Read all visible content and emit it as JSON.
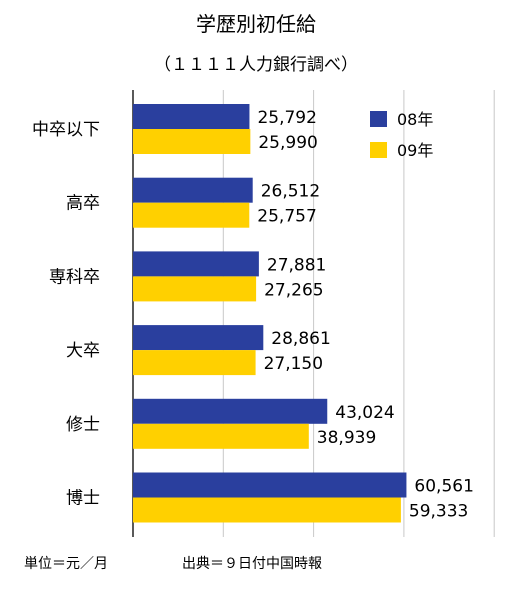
{
  "chart_data": {
    "type": "bar",
    "orientation": "horizontal",
    "title": "学歴別初任給",
    "subtitle": "（１１１１人力銀行調べ）",
    "categories": [
      "中卒以下",
      "高卒",
      "専科卒",
      "大卒",
      "修士",
      "博士"
    ],
    "series": [
      {
        "name": "08年",
        "color": "#2a3f9e",
        "values": [
          25792,
          26512,
          27881,
          28861,
          43024,
          60561
        ],
        "labels": [
          "25,792",
          "26,512",
          "27,881",
          "28,861",
          "43,024",
          "60,561"
        ]
      },
      {
        "name": "09年",
        "color": "#ffd000",
        "values": [
          25990,
          25757,
          27265,
          27150,
          38939,
          59333
        ],
        "labels": [
          "25,990",
          "25,757",
          "27,265",
          "27,150",
          "38,939",
          "59,333"
        ]
      }
    ],
    "xlim": [
      0,
      80000
    ],
    "grid": true,
    "legend_position": "top-right",
    "footnote_unit": "単位＝元／月",
    "footnote_source": "出典＝９日付中国時報"
  }
}
